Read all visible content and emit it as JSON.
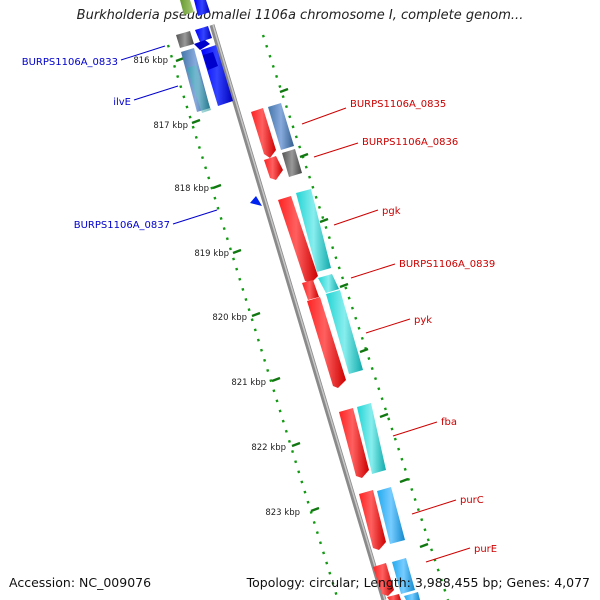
{
  "title": "Burkholderia pseudomallei 1106a chromosome I, complete genom...",
  "footer": {
    "accession": "Accession: NC_009076",
    "summary": "Topology: circular; Length: 3,988,455 bp; Genes: 4,077"
  },
  "scale_labels": [
    "816 kbp",
    "817 kbp",
    "818 kbp",
    "819 kbp",
    "820 kbp",
    "821 kbp",
    "822 kbp",
    "823 kbp"
  ],
  "gene_labels": {
    "reverse_strand": [
      "BURPS1106A_0833",
      "ilvE",
      "BURPS1106A_0837"
    ],
    "forward_strand": [
      "BURPS1106A_0835",
      "BURPS1106A_0836",
      "pgk",
      "BURPS1106A_0839",
      "pyk",
      "fba",
      "purC",
      "purE"
    ]
  },
  "colors": {
    "reverse_gene": "#0000ee",
    "forward_gene": "#ee0000",
    "backbone": "#888888",
    "ticks": "#119911",
    "reverse_label": "#0000cc",
    "forward_label": "#cc0000",
    "cds_cyan": "#22cccc",
    "cds_light_blue": "#22aaee",
    "cds_steel": "#5588bb",
    "cds_gray": "#666666"
  }
}
